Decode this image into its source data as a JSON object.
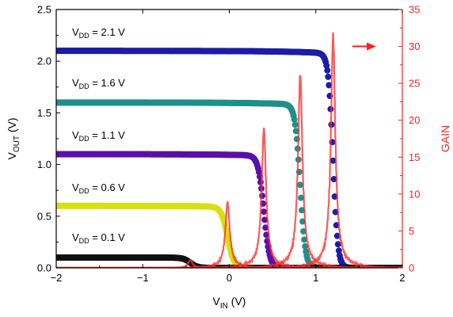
{
  "chart_data": {
    "type": "scatter",
    "x_axis": {
      "label_main": "V",
      "label_sub": "IN",
      "label_unit": " (V)",
      "range": [
        -2,
        2
      ],
      "ticks": [
        -2,
        -1,
        0,
        1,
        2
      ],
      "tick_labels": [
        "−2",
        "−1",
        "0",
        "1",
        "2"
      ]
    },
    "y_left": {
      "label_main": "V",
      "label_sub": "OUT",
      "label_unit": " (V)",
      "range": [
        0,
        2.5
      ],
      "ticks": [
        0,
        0.5,
        1.0,
        1.5,
        2.0,
        2.5
      ],
      "tick_labels": [
        "0.0",
        "0.5",
        "1.0",
        "1.5",
        "2.0",
        "2.5"
      ]
    },
    "y_right": {
      "label": "GAIN",
      "color": "#ff2020",
      "range": [
        0,
        35
      ],
      "ticks": [
        0,
        5,
        10,
        15,
        20,
        25,
        30,
        35
      ],
      "tick_labels": [
        "0",
        "5",
        "10",
        "15",
        "20",
        "25",
        "30",
        "35"
      ]
    },
    "transfer_series": [
      {
        "vdd_label": "V",
        "vdd_sub": "DD",
        "vdd_value": " = 2.1 V",
        "vdd": 2.1,
        "vm": 1.2,
        "gain_peak": 30,
        "color": "#1c1ca8"
      },
      {
        "vdd_label": "V",
        "vdd_sub": "DD",
        "vdd_value": " = 1.6 V",
        "vdd": 1.6,
        "vm": 0.82,
        "gain_peak": 25,
        "color": "#1f8f8c"
      },
      {
        "vdd_label": "V",
        "vdd_sub": "DD",
        "vdd_value": " = 1.1 V",
        "vdd": 1.1,
        "vm": 0.4,
        "gain_peak": 18,
        "color": "#5a10a8"
      },
      {
        "vdd_label": "V",
        "vdd_sub": "DD",
        "vdd_value": " = 0.6 V",
        "vdd": 0.6,
        "vm": -0.02,
        "gain_peak": 8.5,
        "color": "#d8e010"
      },
      {
        "vdd_label": "V",
        "vdd_sub": "DD",
        "vdd_value": " = 0.1 V",
        "vdd": 0.1,
        "vm": -0.45,
        "gain_peak": 1,
        "color": "#111111"
      }
    ],
    "gain_color": "#ff3030",
    "arrow_color": "#ff2020",
    "grid": false,
    "legend": "inline labels at left"
  }
}
